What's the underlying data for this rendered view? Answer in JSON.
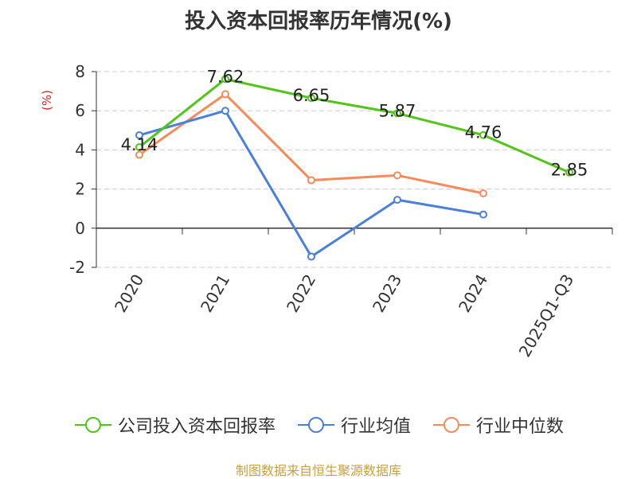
{
  "chart_data": {
    "type": "line",
    "title": "投入资本回报率历年情况(%)",
    "ylabel": "(%)",
    "categories": [
      "2020",
      "2021",
      "2022",
      "2023",
      "2024",
      "2025Q1-Q3"
    ],
    "ylim": [
      -2,
      8
    ],
    "yticks": [
      -2,
      0,
      2,
      4,
      6,
      8
    ],
    "grid": true,
    "legend_position": "bottom",
    "series": [
      {
        "name": "公司投入资本回报率",
        "color": "#52c41a",
        "values": [
          4.14,
          7.62,
          6.65,
          5.87,
          4.76,
          2.85
        ],
        "data_labels": [
          "4.14",
          "7.62",
          "6.65",
          "5.87",
          "4.76",
          "2.85"
        ]
      },
      {
        "name": "行业均值",
        "color": "#4a7fdb",
        "values": [
          4.75,
          6.0,
          -1.45,
          1.45,
          0.7,
          null
        ]
      },
      {
        "name": "行业中位数",
        "color": "#f58b5a",
        "values": [
          3.75,
          6.85,
          2.45,
          2.7,
          1.78,
          null
        ]
      }
    ]
  },
  "source": "制图数据来自恒生聚源数据库"
}
